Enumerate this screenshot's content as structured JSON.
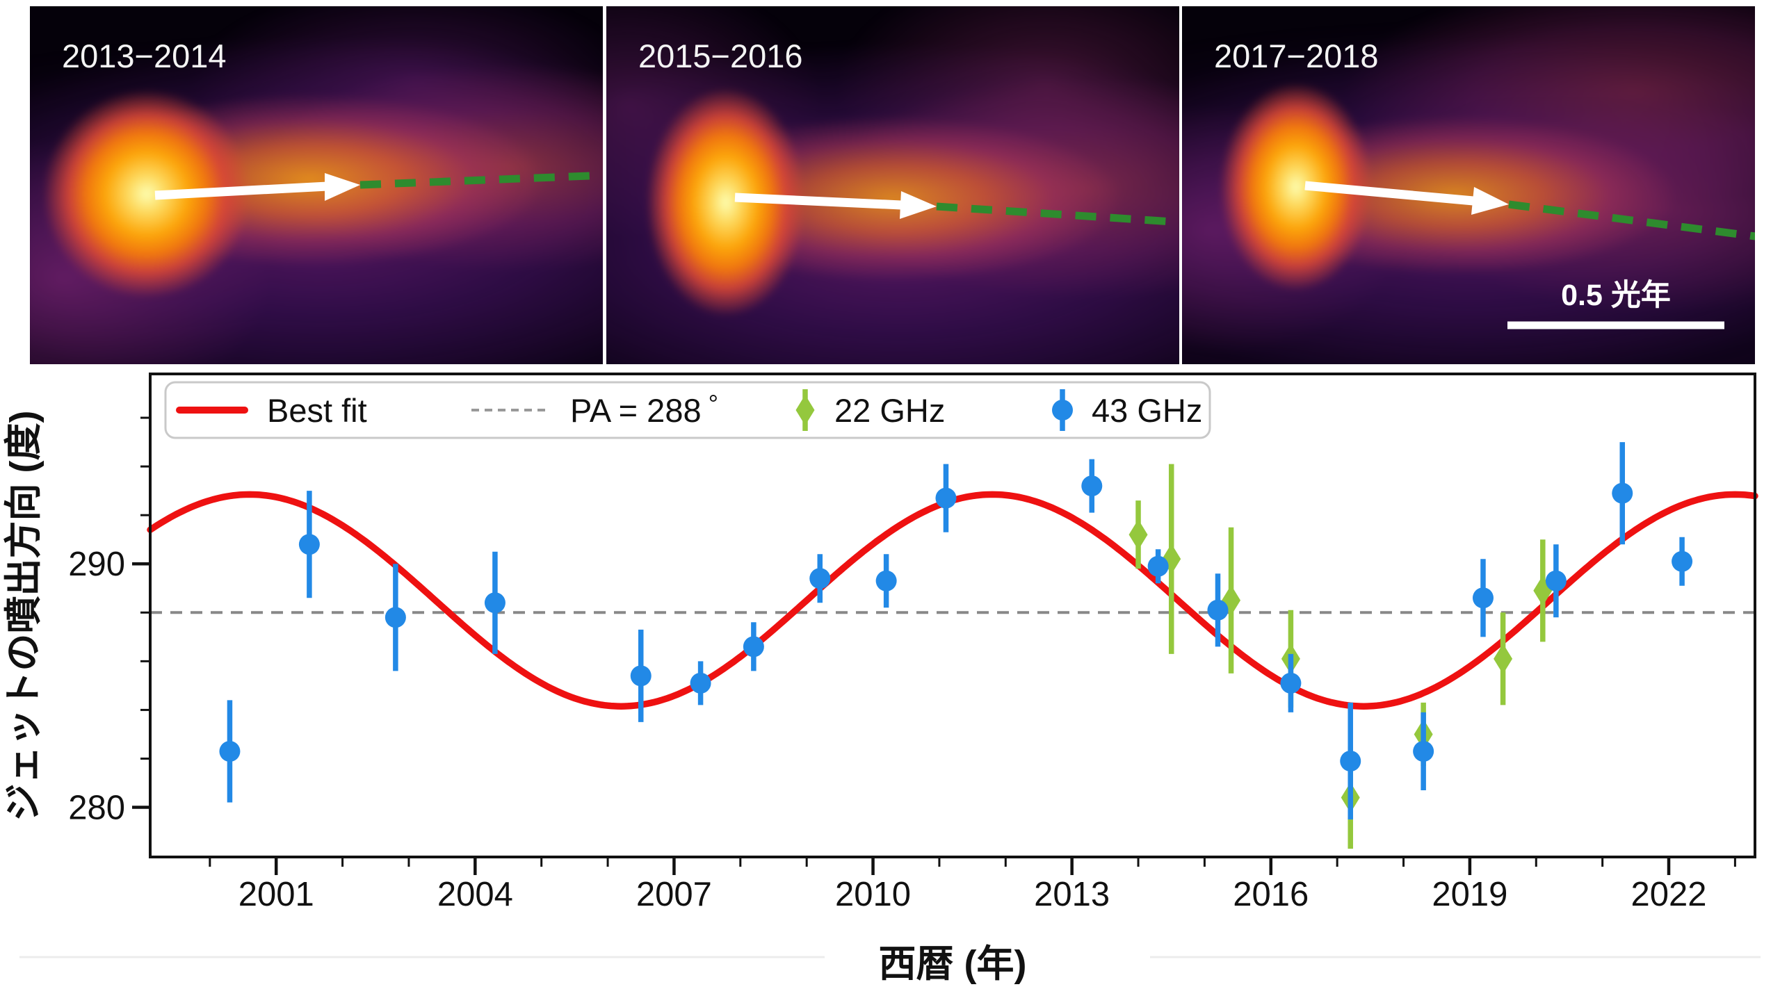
{
  "figure": {
    "panels": [
      {
        "label": "2013−2014"
      },
      {
        "label": "2015−2016"
      },
      {
        "label": "2017−2018",
        "scalebar_label": "0.5 光年"
      }
    ],
    "panel_colors": {
      "background": "#05010a",
      "arrow": "#ffffff",
      "dashed_line_green": "#2e8b2e"
    }
  },
  "chart_data": {
    "type": "scatter",
    "title": "",
    "xlabel": "西暦 (年)",
    "ylabel": "ジェットの噴出方向 (度)",
    "xlim": [
      1999.1,
      2023.3
    ],
    "ylim": [
      277.96,
      297.8
    ],
    "xticks": [
      2001,
      2004,
      2007,
      2010,
      2013,
      2016,
      2019,
      2022
    ],
    "yticks": [
      280,
      290
    ],
    "x_minor_interval": 1,
    "y_minor_interval": 2,
    "grid": false,
    "legend_position": "top-inside",
    "reference_line": {
      "label": "PA = 288 °",
      "value": 288,
      "color": "#888888",
      "style": "dashed"
    },
    "best_fit": {
      "label": "Best fit",
      "color": "#ee1111",
      "model": "sinusoid",
      "mean_deg": 288.5,
      "amplitude_deg": 4.35,
      "period_years": 11.2,
      "peak_year": 2011.8
    },
    "series": [
      {
        "name": "22 GHz",
        "marker": "diamond",
        "color": "#94c83d",
        "points": [
          [
            2014.0,
            291.2,
            1.4
          ],
          [
            2014.5,
            290.2,
            3.9
          ],
          [
            2015.4,
            288.5,
            3.0
          ],
          [
            2016.3,
            286.1,
            2.0
          ],
          [
            2017.2,
            280.4,
            2.1
          ],
          [
            2018.3,
            283.0,
            1.3
          ],
          [
            2019.5,
            286.1,
            1.9
          ],
          [
            2020.1,
            288.9,
            2.1
          ]
        ]
      },
      {
        "name": "43 GHz",
        "marker": "circle",
        "color": "#2289e6",
        "points": [
          [
            2000.3,
            282.3,
            2.1
          ],
          [
            2001.5,
            290.8,
            2.2
          ],
          [
            2002.8,
            287.8,
            2.2
          ],
          [
            2004.3,
            288.4,
            2.1
          ],
          [
            2006.5,
            285.4,
            1.9
          ],
          [
            2007.4,
            285.1,
            0.9
          ],
          [
            2008.2,
            286.6,
            1.0
          ],
          [
            2009.2,
            289.4,
            1.0
          ],
          [
            2010.2,
            289.3,
            1.1
          ],
          [
            2011.1,
            292.7,
            1.4
          ],
          [
            2013.3,
            293.2,
            1.1
          ],
          [
            2014.3,
            289.9,
            0.7
          ],
          [
            2015.2,
            288.1,
            1.5
          ],
          [
            2016.3,
            285.1,
            1.2
          ],
          [
            2017.2,
            281.9,
            2.4
          ],
          [
            2018.3,
            282.3,
            1.6
          ],
          [
            2019.2,
            288.6,
            1.6
          ],
          [
            2020.3,
            289.3,
            1.5
          ],
          [
            2021.3,
            292.9,
            2.1
          ],
          [
            2022.2,
            290.1,
            1.0
          ]
        ]
      }
    ]
  }
}
